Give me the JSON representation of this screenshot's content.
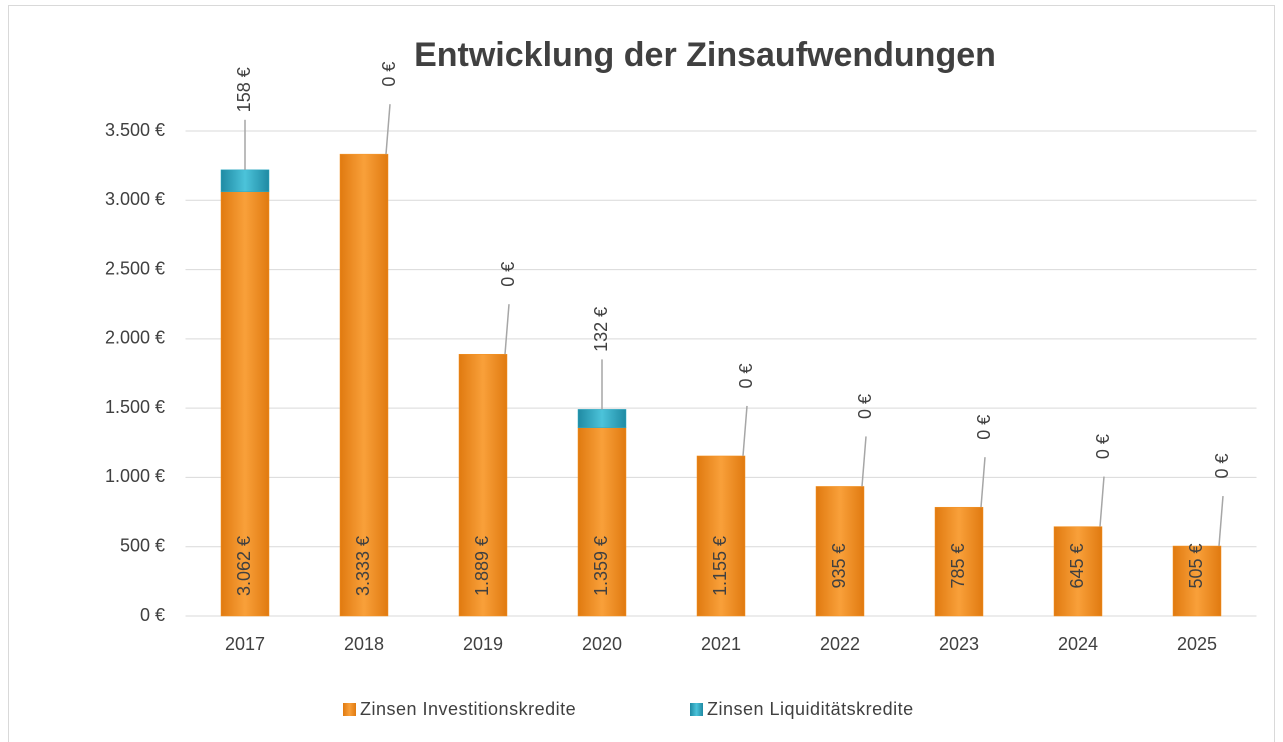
{
  "chart_data": {
    "type": "stacked_bar",
    "title": "Entwicklung der Zinsaufwendungen",
    "categories": [
      "2017",
      "2018",
      "2019",
      "2020",
      "2021",
      "2022",
      "2023",
      "2024",
      "2025"
    ],
    "series": [
      {
        "name": "Zinsen Investitionskredite",
        "color": "#f4901e",
        "values": [
          3062,
          3333,
          1889,
          1359,
          1155,
          935,
          785,
          645,
          505
        ],
        "value_labels": [
          "3.062 €",
          "3.333 €",
          "1.889 €",
          "1.359 €",
          "1.155 €",
          "935 €",
          "785 €",
          "645 €",
          "505 €"
        ]
      },
      {
        "name": "Zinsen Liquiditätskredite",
        "color": "#2fa9c2",
        "values": [
          158,
          0,
          0,
          132,
          0,
          0,
          0,
          0,
          0
        ],
        "value_labels": [
          "158 €",
          "0 €",
          "0 €",
          "132 €",
          "0 €",
          "0 €",
          "0 €",
          "0 €",
          "0 €"
        ]
      }
    ],
    "ylim": [
      0,
      3500
    ],
    "yticks": [
      {
        "value": 0,
        "label": "0 €"
      },
      {
        "value": 500,
        "label": "500 €"
      },
      {
        "value": 1000,
        "label": "1.000 €"
      },
      {
        "value": 1500,
        "label": "1.500 €"
      },
      {
        "value": 2000,
        "label": "2.000 €"
      },
      {
        "value": 2500,
        "label": "2.500 €"
      },
      {
        "value": 3000,
        "label": "3.000 €"
      },
      {
        "value": 3500,
        "label": "3.500 €"
      }
    ],
    "grid": true,
    "legend": "bottom"
  }
}
